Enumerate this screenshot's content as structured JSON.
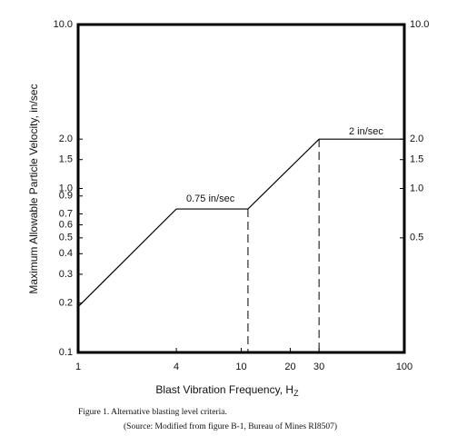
{
  "chart_data": {
    "type": "line",
    "ylabel": "Maximum Allowable Particle Velocity, in/sec",
    "xlabel": "Blast Vibration Frequency, H",
    "xlabel_subscript": "Z",
    "log_x": true,
    "log_y": true,
    "xlim": [
      1,
      100
    ],
    "ylim": [
      0.1,
      10
    ],
    "y2lim": [
      0.1,
      10
    ],
    "xticks": [
      1,
      4,
      10,
      20,
      30,
      100
    ],
    "yticks": [
      {
        "value": 10,
        "label": "10.0"
      },
      {
        "value": 2,
        "label": "2.0"
      },
      1.5,
      {
        "value": 1,
        "label": "1.0"
      },
      0.9,
      0.7,
      0.6,
      0.5,
      0.4,
      0.3,
      0.2,
      0.1
    ],
    "y2ticks": [
      {
        "value": 10,
        "label": "10.0"
      },
      {
        "value": 2,
        "label": "2.0"
      },
      1.5,
      {
        "value": 1,
        "label": "1.0"
      },
      0.5
    ],
    "x": [
      1,
      4,
      11,
      30,
      100
    ],
    "series": [
      {
        "color": "#000000",
        "values": [
          0.19,
          0.75,
          0.75,
          2,
          2
        ]
      }
    ],
    "annotations": [
      "0.75 in/sec",
      "2 in/sec"
    ],
    "caption": [
      "Figure 1. Alternative blasting level criteria.",
      "(Source: Modified from figure B-1, Bureau of Mines RI8507)"
    ]
  }
}
